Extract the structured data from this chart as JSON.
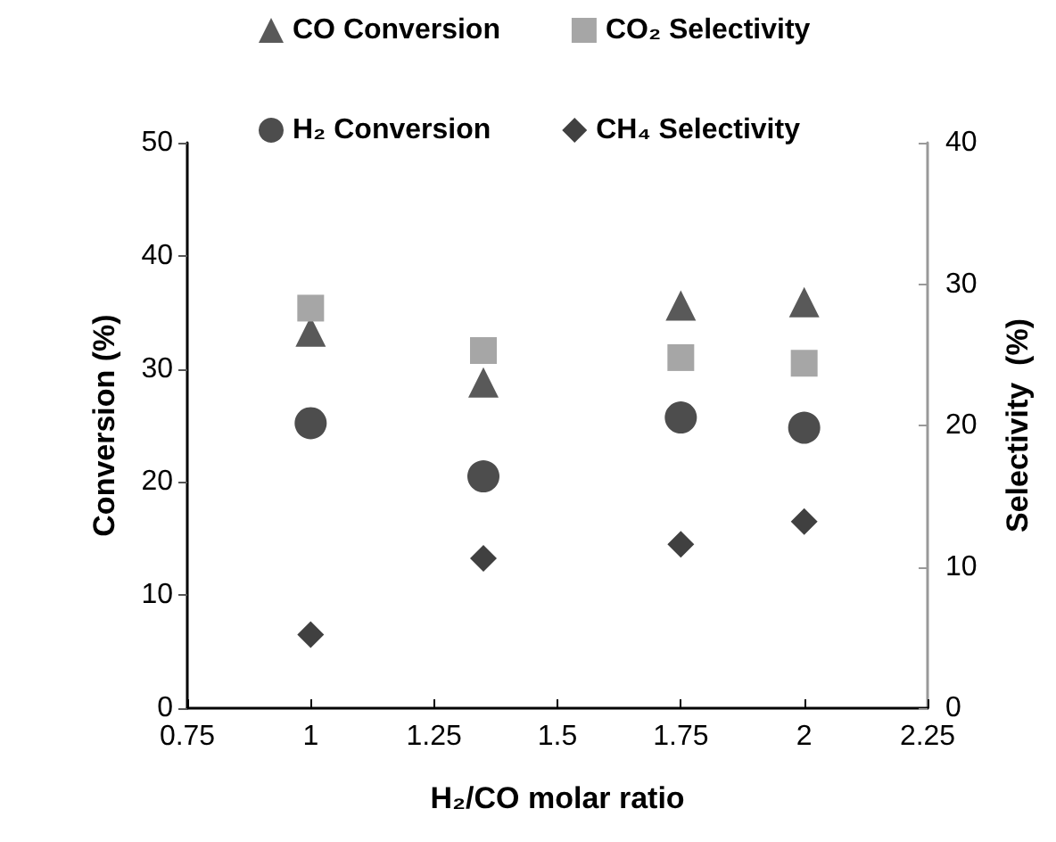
{
  "chart_data": {
    "type": "scatter",
    "xlabel": "H₂/CO molar ratio",
    "ylabel": "Conversion (%)",
    "y2label": "Selectivity  (%)",
    "x": [
      1,
      1.35,
      1.75,
      2
    ],
    "series": [
      {
        "name": "CO Conversion",
        "color": "#595959",
        "marker": "triangle",
        "values": [
          33.3,
          28.8,
          35.6,
          35.9
        ]
      },
      {
        "name": "CO₂ Selectivity",
        "color": "#a6a6a6",
        "marker": "square",
        "axis": "y2",
        "values": [
          28.3,
          25.3,
          24.8,
          24.4
        ]
      },
      {
        "name": "H₂ Conversion",
        "color": "#4d4d4d",
        "marker": "circle",
        "values": [
          25.2,
          20.5,
          25.7,
          24.8
        ]
      },
      {
        "name": "CH₄ Selectivity",
        "color": "#404040",
        "marker": "diamond",
        "axis": "y2",
        "values": [
          5.2,
          10.6,
          11.6,
          13.2
        ]
      }
    ],
    "xlim": [
      0.75,
      2.25
    ],
    "xticks": [
      0.75,
      1,
      1.25,
      1.5,
      1.75,
      2,
      2.25
    ],
    "ylim": [
      0,
      50
    ],
    "yticks": [
      0,
      10,
      20,
      30,
      40,
      50
    ],
    "y2lim": [
      0,
      40
    ],
    "y2ticks": [
      0,
      10,
      20,
      30,
      40
    ],
    "grid": false,
    "legend": "top"
  }
}
